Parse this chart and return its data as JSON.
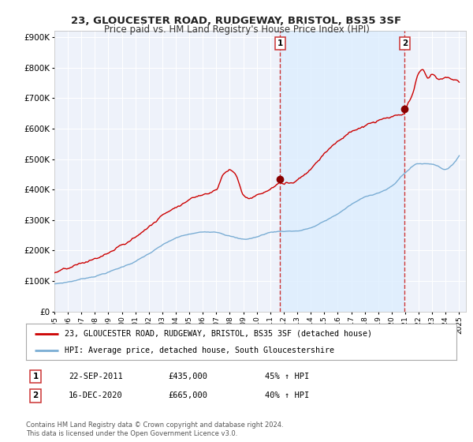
{
  "title": "23, GLOUCESTER ROAD, RUDGEWAY, BRISTOL, BS35 3SF",
  "subtitle": "Price paid vs. HM Land Registry's House Price Index (HPI)",
  "xlim": [
    1995.0,
    2025.5
  ],
  "ylim": [
    0,
    920000
  ],
  "yticks": [
    0,
    100000,
    200000,
    300000,
    400000,
    500000,
    600000,
    700000,
    800000,
    900000
  ],
  "ytick_labels": [
    "£0",
    "£100K",
    "£200K",
    "£300K",
    "£400K",
    "£500K",
    "£600K",
    "£700K",
    "£800K",
    "£900K"
  ],
  "marker1_x": 2011.72,
  "marker1_y": 435000,
  "marker2_x": 2020.96,
  "marker2_y": 665000,
  "vline1_x": 2011.72,
  "vline2_x": 2020.96,
  "red_color": "#cc0000",
  "blue_color": "#7aadd4",
  "marker_color": "#880000",
  "vline_color": "#cc3333",
  "shade_color": "#ddeeff",
  "background_color": "#f0f4ff",
  "plot_bg_color": "#eef2fa",
  "grid_color": "#ffffff",
  "legend1_label": "23, GLOUCESTER ROAD, RUDGEWAY, BRISTOL, BS35 3SF (detached house)",
  "legend2_label": "HPI: Average price, detached house, South Gloucestershire",
  "annotation1_num": "1",
  "annotation2_num": "2",
  "ann1_date": "22-SEP-2011",
  "ann1_price": "£435,000",
  "ann1_hpi": "45% ↑ HPI",
  "ann2_date": "16-DEC-2020",
  "ann2_price": "£665,000",
  "ann2_hpi": "40% ↑ HPI",
  "footnote1": "Contains HM Land Registry data © Crown copyright and database right 2024.",
  "footnote2": "This data is licensed under the Open Government Licence v3.0.",
  "hpi_x": [
    1995,
    1996,
    1997,
    1998,
    1999,
    2000,
    2001,
    2002,
    2003,
    2004,
    2005,
    2006,
    2007,
    2008,
    2009,
    2010,
    2011,
    2012,
    2013,
    2014,
    2015,
    2016,
    2017,
    2018,
    2019,
    2020,
    2021,
    2022,
    2023,
    2024,
    2025
  ],
  "hpi_y": [
    90000,
    97000,
    107000,
    118000,
    132000,
    148000,
    168000,
    192000,
    218000,
    240000,
    252000,
    258000,
    262000,
    252000,
    240000,
    248000,
    263000,
    268000,
    270000,
    280000,
    300000,
    325000,
    355000,
    378000,
    395000,
    415000,
    460000,
    490000,
    490000,
    475000,
    520000
  ],
  "red_x": [
    1995,
    1996,
    1997,
    1998,
    1999,
    2000,
    2001,
    2002,
    2003,
    2004,
    2005,
    2006,
    2007,
    2007.5,
    2008,
    2008.5,
    2009,
    2009.5,
    2010,
    2010.5,
    2011,
    2011.72,
    2012,
    2012.5,
    2013,
    2014,
    2015,
    2016,
    2017,
    2018,
    2019,
    2020,
    2020.96,
    2021,
    2021.5,
    2022,
    2022.3,
    2022.7,
    2023,
    2023.5,
    2024,
    2025
  ],
  "red_y": [
    128000,
    136000,
    148000,
    163000,
    182000,
    205000,
    232000,
    268000,
    305000,
    340000,
    368000,
    388000,
    410000,
    460000,
    475000,
    455000,
    395000,
    385000,
    395000,
    405000,
    415000,
    435000,
    432000,
    435000,
    450000,
    490000,
    545000,
    590000,
    618000,
    638000,
    652000,
    660000,
    665000,
    672000,
    720000,
    790000,
    800000,
    775000,
    790000,
    768000,
    775000,
    760000
  ]
}
